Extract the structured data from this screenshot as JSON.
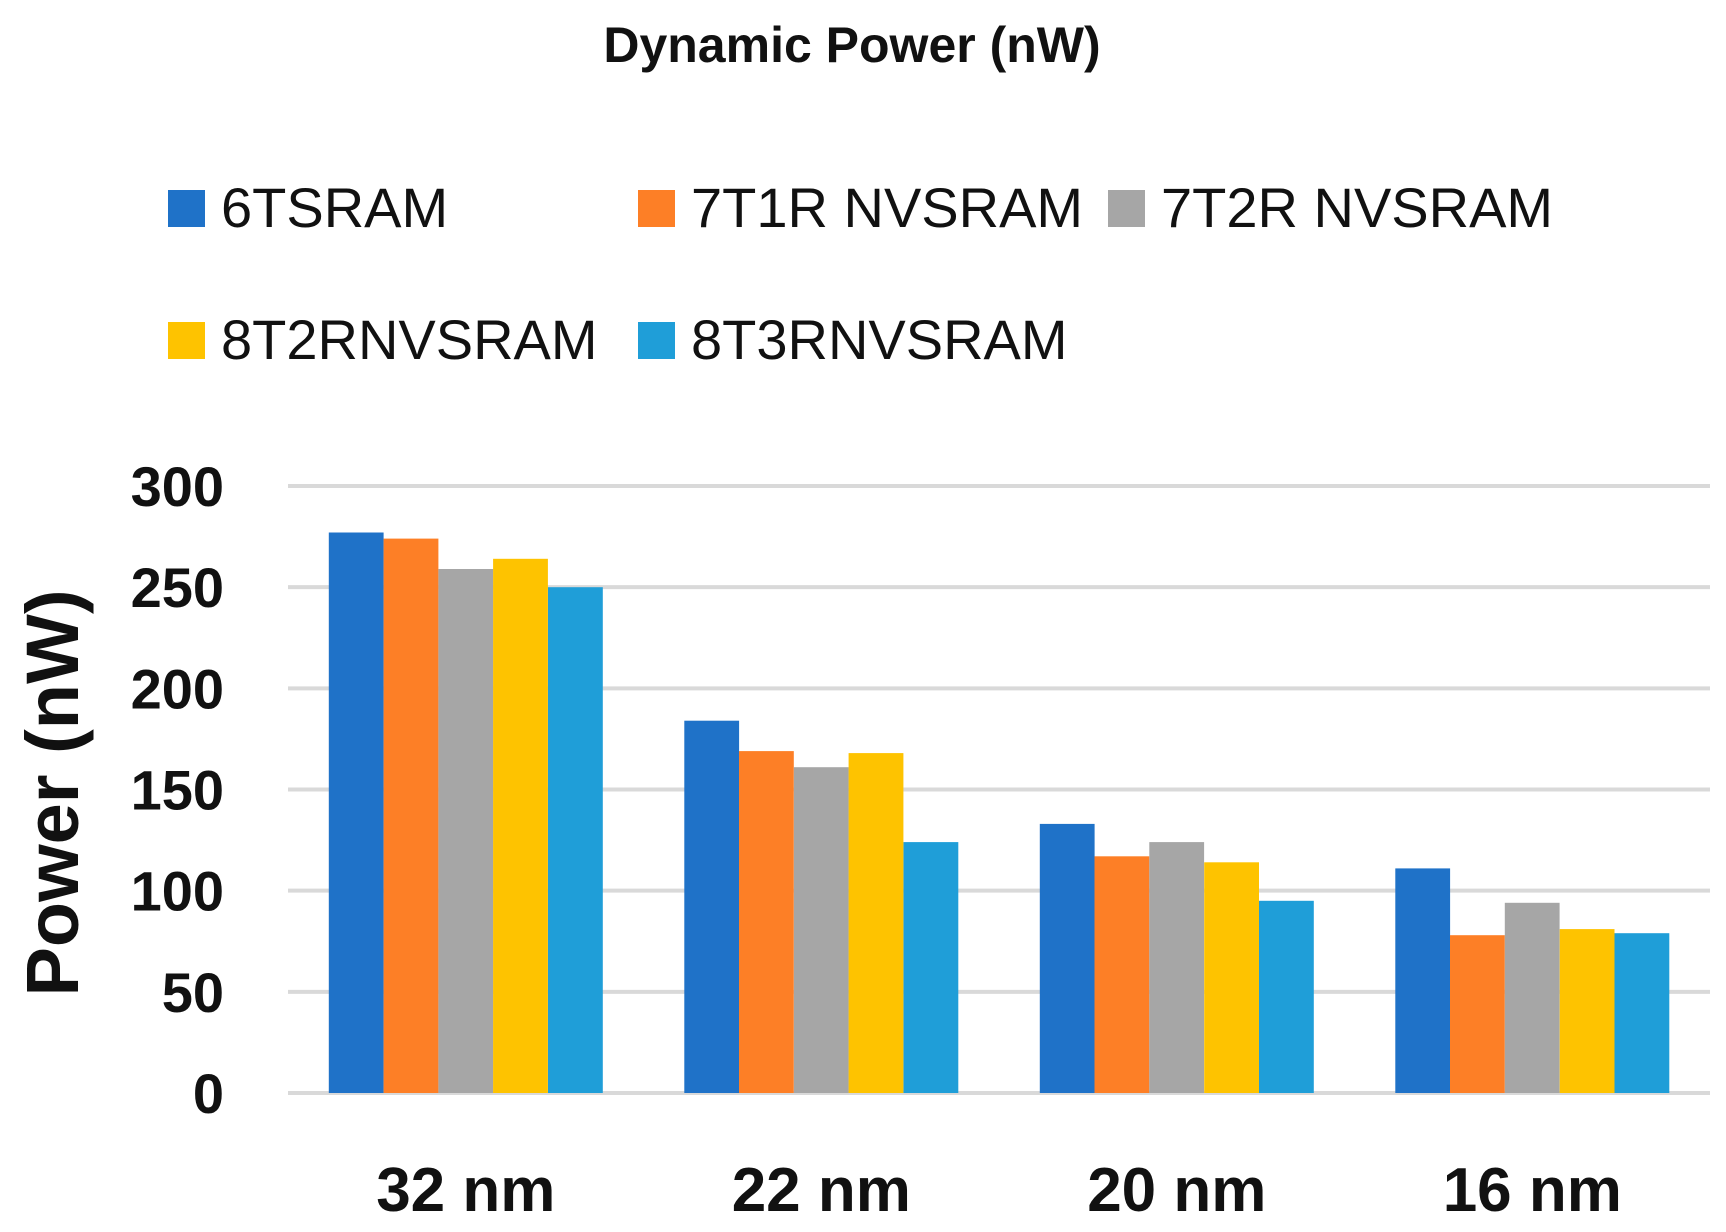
{
  "chart_data": {
    "type": "bar",
    "title": "Dynamic Power (nW)",
    "xlabel": "",
    "ylabel": "Power (nW)",
    "categories": [
      "32 nm",
      "22 nm",
      "20 nm",
      "16 nm"
    ],
    "yticks": [
      "0",
      "50",
      "100",
      "150",
      "200",
      "250",
      "300"
    ],
    "ylim": [
      0,
      300
    ],
    "grid": true,
    "legend_position": "top",
    "series": [
      {
        "name": "6TSRAM",
        "color": "#1f72c8",
        "values": [
          277,
          184,
          133,
          111
        ]
      },
      {
        "name": "7T1R NVSRAM",
        "color": "#fd7f26",
        "values": [
          274,
          169,
          117,
          78
        ]
      },
      {
        "name": "7T2R NVSRAM",
        "color": "#a6a6a6",
        "values": [
          259,
          161,
          124,
          94
        ]
      },
      {
        "name": "8T2RNVSRAM",
        "color": "#fec300",
        "values": [
          264,
          168,
          114,
          81
        ]
      },
      {
        "name": "8T3RNVSRAM",
        "color": "#1f9ed8",
        "values": [
          250,
          124,
          95,
          79
        ]
      }
    ]
  }
}
